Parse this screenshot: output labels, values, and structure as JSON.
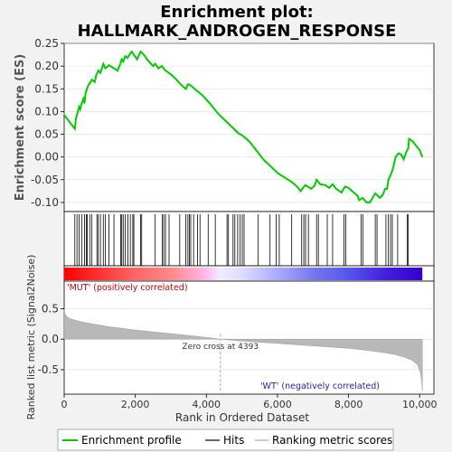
{
  "chart_data": {
    "type": "line",
    "title_line1": "Enrichment plot:",
    "title_line2": "HALLMARK_ANDROGEN_RESPONSE",
    "panels": {
      "es": {
        "ylabel": "Enrichment score (ES)",
        "ylim": [
          -0.12,
          0.25
        ],
        "yticks": [
          -0.1,
          -0.05,
          0.0,
          0.05,
          0.1,
          0.15,
          0.2,
          0.25
        ],
        "ytick_labels": [
          "-0.10",
          "-0.05",
          "0.00",
          "0.05",
          "0.10",
          "0.15",
          "0.20",
          "0.25"
        ],
        "series": [
          {
            "color": "#00cc00",
            "x": [
              0,
              5,
              300,
              330,
              350,
              420,
              450,
              480,
              540,
              570,
              600,
              660,
              700,
              780,
              860,
              900,
              960,
              1020,
              1100,
              1160,
              1260,
              1400,
              1500,
              1580,
              1620,
              1660,
              1720,
              1780,
              1860,
              1900,
              1960,
              2050,
              2150,
              2250,
              2350,
              2500,
              2560,
              2650,
              2750,
              2850,
              2950,
              3100,
              3250,
              3350,
              3420,
              3480,
              3550,
              3700,
              3900,
              4100,
              4300,
              4400,
              4600,
              4800,
              4900,
              5000,
              5050,
              5200,
              5400,
              5600,
              5800,
              6000,
              6200,
              6400,
              6550,
              6650,
              6700,
              6780,
              6850,
              6950,
              7050,
              7100,
              7200,
              7350,
              7450,
              7550,
              7650,
              7800,
              7900,
              8000,
              8100,
              8250,
              8300,
              8400,
              8500,
              8600,
              8750,
              8820,
              8880,
              8950,
              9030,
              9080,
              9120,
              9180,
              9250,
              9320,
              9400,
              9480,
              9550,
              9620,
              9680,
              9700,
              9800,
              9900,
              10000,
              10075
            ],
            "y": [
              0.09,
              0.092,
              0.062,
              0.085,
              0.09,
              0.11,
              0.105,
              0.115,
              0.128,
              0.118,
              0.14,
              0.155,
              0.16,
              0.17,
              0.165,
              0.18,
              0.19,
              0.185,
              0.205,
              0.195,
              0.202,
              0.195,
              0.19,
              0.205,
              0.215,
              0.21,
              0.222,
              0.218,
              0.228,
              0.232,
              0.225,
              0.215,
              0.232,
              0.224,
              0.213,
              0.2,
              0.205,
              0.195,
              0.2,
              0.19,
              0.185,
              0.175,
              0.162,
              0.155,
              0.15,
              0.16,
              0.158,
              0.148,
              0.135,
              0.118,
              0.098,
              0.09,
              0.075,
              0.06,
              0.052,
              0.048,
              0.045,
              0.035,
              0.015,
              -0.005,
              -0.02,
              -0.035,
              -0.045,
              -0.055,
              -0.065,
              -0.075,
              -0.07,
              -0.062,
              -0.065,
              -0.07,
              -0.062,
              -0.05,
              -0.06,
              -0.062,
              -0.068,
              -0.06,
              -0.07,
              -0.078,
              -0.065,
              -0.068,
              -0.075,
              -0.085,
              -0.095,
              -0.09,
              -0.1,
              -0.1,
              -0.08,
              -0.085,
              -0.09,
              -0.085,
              -0.07,
              -0.07,
              -0.05,
              -0.04,
              -0.025,
              0.0,
              0.008,
              0.005,
              -0.005,
              0.01,
              0.02,
              0.04,
              0.035,
              0.025,
              0.015,
              0.0
            ]
          }
        ]
      },
      "hits": {
        "positions": [
          300,
          360,
          420,
          500,
          570,
          620,
          650,
          720,
          780,
          920,
          960,
          1020,
          1100,
          1160,
          1260,
          1400,
          1590,
          1620,
          1660,
          1720,
          1790,
          1860,
          1930,
          1960,
          2150,
          2180,
          2560,
          2760,
          2800,
          2850,
          2950,
          3250,
          3420,
          3480,
          3520,
          3560,
          3640,
          3750,
          3820,
          4050,
          4250,
          4580,
          4620,
          4750,
          4800,
          4880,
          4950,
          5010,
          5060,
          5450,
          5790,
          5960,
          6050,
          6400,
          6680,
          6740,
          6790,
          6870,
          7100,
          7150,
          7400,
          7550,
          7870,
          7920,
          8350,
          8400,
          8750,
          8800,
          9050,
          9120,
          9180,
          9230,
          9380,
          9650,
          9680
        ]
      },
      "rank_bar": {
        "stops": [
          0,
          1000,
          2000,
          3000,
          4000,
          4393,
          5000,
          6000,
          7000,
          8000,
          9000,
          10075
        ],
        "colors": [
          "#ff0000",
          "#ff3333",
          "#ff6666",
          "#ff8888",
          "#ffbbee",
          "#eeeeff",
          "#ddddff",
          "#aaaaff",
          "#7777ee",
          "#5555ee",
          "#4422dd",
          "#3300cc"
        ]
      },
      "metric": {
        "ylabel": "Ranked list metric (Signal2Noise)",
        "ylim": [
          -0.9,
          0.95
        ],
        "yticks": [
          -0.5,
          0.0,
          0.5
        ],
        "ytick_labels": [
          "-0.5",
          "0.0",
          "0.5"
        ],
        "x": [
          0,
          20,
          60,
          120,
          200,
          300,
          450,
          600,
          800,
          1000,
          1300,
          1600,
          2000,
          2500,
          3000,
          3500,
          4000,
          4393,
          5000,
          6000,
          7000,
          8000,
          8500,
          9000,
          9300,
          9600,
          9800,
          9950,
          10020,
          10060,
          10075
        ],
        "y": [
          0.48,
          0.42,
          0.38,
          0.35,
          0.33,
          0.31,
          0.29,
          0.27,
          0.25,
          0.23,
          0.2,
          0.18,
          0.15,
          0.12,
          0.09,
          0.06,
          0.03,
          0.0,
          -0.03,
          -0.07,
          -0.11,
          -0.15,
          -0.18,
          -0.22,
          -0.25,
          -0.3,
          -0.35,
          -0.43,
          -0.55,
          -0.7,
          -0.85
        ],
        "zero_cross_label": "Zero cross at 4393",
        "zero_cross": 4393,
        "pos_label": "'MUT' (positively correlated)",
        "neg_label": "'WT' (negatively correlated)"
      }
    },
    "xlabel": "Rank in Ordered Dataset",
    "xlim": [
      0,
      10400
    ],
    "xticks": [
      0,
      2000,
      4000,
      6000,
      8000,
      10000
    ],
    "xtick_labels": [
      "0",
      "2,000",
      "4,000",
      "6,000",
      "8,000",
      "10,000"
    ],
    "legend": {
      "placement": "bottom",
      "entries": [
        {
          "label": "Enrichment profile",
          "color": "#00cc00"
        },
        {
          "label": "Hits",
          "color": "#000000"
        },
        {
          "label": "Ranking metric scores",
          "color": "#aaaaaa"
        }
      ]
    }
  }
}
